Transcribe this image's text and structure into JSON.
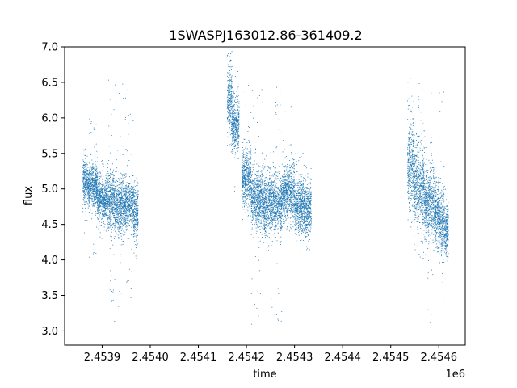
{
  "chart_data": {
    "type": "scatter",
    "title": "1SWASPJ163012.86-361409.2",
    "xlabel": "time",
    "ylabel": "flux",
    "x_offset_label": "1e6",
    "x_scale": 1000000,
    "xlim": [
      2453822,
      2454655
    ],
    "ylim": [
      2.8,
      7.0
    ],
    "x_ticks": [
      2453900,
      2454000,
      2454100,
      2454200,
      2454300,
      2454400,
      2454500,
      2454600
    ],
    "x_tick_labels": [
      "2.4539",
      "2.4540",
      "2.4541",
      "2.4542",
      "2.4543",
      "2.4544",
      "2.4545",
      "2.4546"
    ],
    "y_ticks": [
      3.0,
      3.5,
      4.0,
      4.5,
      5.0,
      5.5,
      6.0,
      6.5,
      7.0
    ],
    "y_tick_labels": [
      "3.0",
      "3.5",
      "4.0",
      "4.5",
      "5.0",
      "5.5",
      "6.0",
      "6.5",
      "7.0"
    ],
    "grid": false,
    "marker_color": "#1f77b4",
    "series": [
      {
        "name": "",
        "segments": [
          {
            "t_start": 2453860,
            "t_end": 2453870,
            "center": 5.1,
            "spread": 0.16,
            "outlier_low": 4.3,
            "outlier_high": 5.6
          },
          {
            "t_start": 2453870,
            "t_end": 2453890,
            "center": 5.05,
            "spread": 0.14,
            "outlier_low": 4.0,
            "outlier_high": 6.05
          },
          {
            "t_start": 2453890,
            "t_end": 2453910,
            "center": 4.85,
            "spread": 0.14,
            "outlier_low": 4.3,
            "outlier_high": 5.4
          },
          {
            "t_start": 2453910,
            "t_end": 2453925,
            "center": 4.85,
            "spread": 0.2,
            "outlier_low": 3.4,
            "outlier_high": 6.7
          },
          {
            "t_start": 2453925,
            "t_end": 2453945,
            "center": 4.75,
            "spread": 0.2,
            "outlier_low": 3.05,
            "outlier_high": 6.7
          },
          {
            "t_start": 2453945,
            "t_end": 2453965,
            "center": 4.8,
            "spread": 0.16,
            "outlier_low": 3.4,
            "outlier_high": 6.6
          },
          {
            "t_start": 2453965,
            "t_end": 2453975,
            "center": 4.7,
            "spread": 0.2,
            "outlier_low": 4.0,
            "outlier_high": 4.95
          },
          {
            "t_start": 2454160,
            "t_end": 2454170,
            "center": 6.25,
            "spread": 0.25,
            "outlier_low": 5.6,
            "outlier_high": 6.75
          },
          {
            "t_start": 2454170,
            "t_end": 2454185,
            "center": 5.9,
            "spread": 0.18,
            "outlier_low": 4.4,
            "outlier_high": 6.8
          },
          {
            "t_start": 2454190,
            "t_end": 2454210,
            "center": 5.15,
            "spread": 0.2,
            "outlier_low": 4.6,
            "outlier_high": 6.5
          },
          {
            "t_start": 2454210,
            "t_end": 2454235,
            "center": 4.85,
            "spread": 0.2,
            "outlier_low": 3.0,
            "outlier_high": 6.6
          },
          {
            "t_start": 2454235,
            "t_end": 2454250,
            "center": 4.8,
            "spread": 0.2,
            "outlier_low": 4.1,
            "outlier_high": 5.55
          },
          {
            "t_start": 2454250,
            "t_end": 2454275,
            "center": 4.8,
            "spread": 0.2,
            "outlier_low": 3.1,
            "outlier_high": 6.45
          },
          {
            "t_start": 2454275,
            "t_end": 2454300,
            "center": 4.95,
            "spread": 0.2,
            "outlier_low": 4.4,
            "outlier_high": 6.2
          },
          {
            "t_start": 2454300,
            "t_end": 2454320,
            "center": 4.75,
            "spread": 0.18,
            "outlier_low": 4.4,
            "outlier_high": 5.6
          },
          {
            "t_start": 2454320,
            "t_end": 2454335,
            "center": 4.7,
            "spread": 0.18,
            "outlier_low": 4.05,
            "outlier_high": 5.45
          },
          {
            "t_start": 2454535,
            "t_end": 2454548,
            "center": 5.4,
            "spread": 0.3,
            "outlier_low": 4.5,
            "outlier_high": 6.7
          },
          {
            "t_start": 2454548,
            "t_end": 2454570,
            "center": 5.05,
            "spread": 0.28,
            "outlier_low": 4.0,
            "outlier_high": 6.5
          },
          {
            "t_start": 2454570,
            "t_end": 2454590,
            "center": 4.8,
            "spread": 0.25,
            "outlier_low": 3.1,
            "outlier_high": 6.4
          },
          {
            "t_start": 2454590,
            "t_end": 2454600,
            "center": 4.7,
            "spread": 0.22,
            "outlier_low": 4.1,
            "outlier_high": 5.3
          },
          {
            "t_start": 2454600,
            "t_end": 2454612,
            "center": 4.55,
            "spread": 0.22,
            "outlier_low": 2.95,
            "outlier_high": 6.6
          },
          {
            "t_start": 2454612,
            "t_end": 2454620,
            "center": 4.4,
            "spread": 0.18,
            "outlier_low": 4.0,
            "outlier_high": 4.8
          }
        ]
      }
    ]
  }
}
